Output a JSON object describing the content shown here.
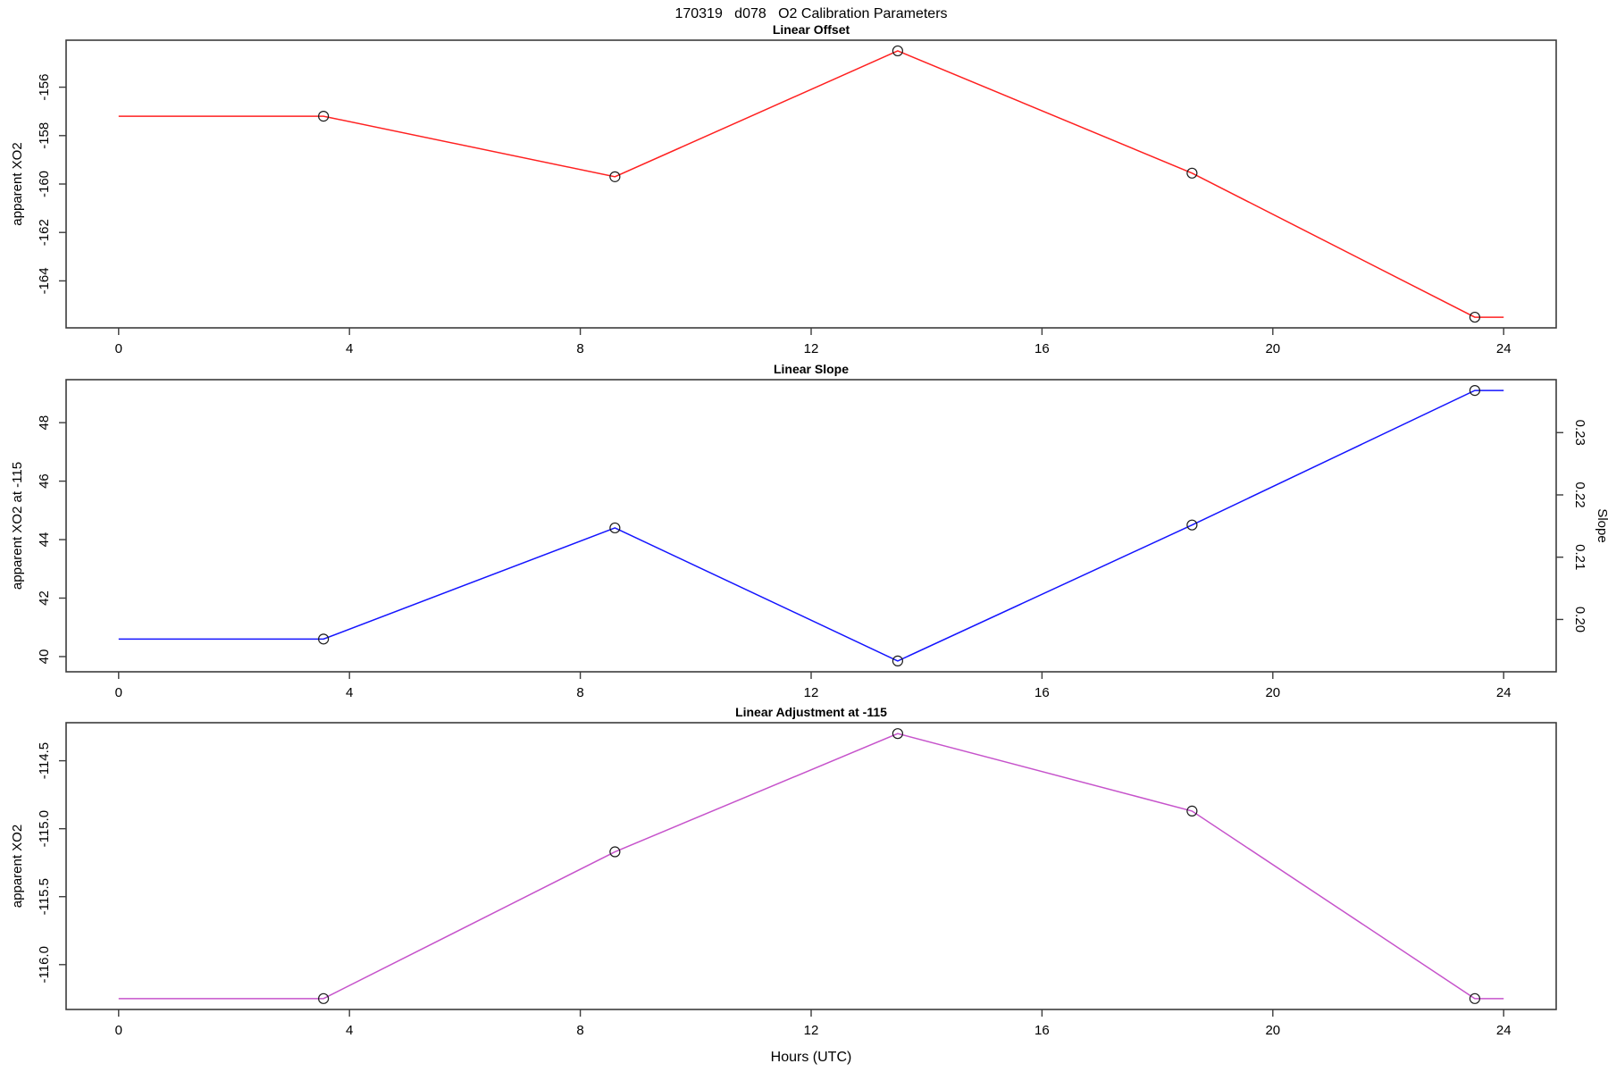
{
  "page_title": "170319   d078   O2 Calibration Parameters",
  "x_axis": {
    "label": "Hours (UTC)",
    "tick_values": [
      0,
      4,
      8,
      12,
      16,
      20,
      24
    ],
    "tick_labels": [
      "0",
      "4",
      "8",
      "12",
      "16",
      "20",
      "24"
    ],
    "lim": [
      -0.91,
      24.91
    ]
  },
  "chart_data": [
    {
      "type": "line",
      "title": "Linear Offset",
      "ylabel": "apparent XO2",
      "color": "#ff2020",
      "marker": "open-circle",
      "x": [
        3.55,
        8.6,
        13.5,
        18.6,
        23.5
      ],
      "values": [
        -157.2,
        -159.7,
        -154.5,
        -159.55,
        -165.5
      ],
      "line_extend_x": [
        0,
        24
      ],
      "ylim": [
        -165.94,
        -154.06
      ],
      "ytick_values": [
        -164,
        -162,
        -160,
        -158,
        -156
      ],
      "ytick_labels": [
        "-164",
        "-162",
        "-160",
        "-158",
        "-156"
      ]
    },
    {
      "type": "line",
      "title": "Linear Slope",
      "ylabel": "apparent XO2 at -115",
      "color": "#1414ff",
      "marker": "open-circle",
      "x": [
        3.55,
        8.6,
        13.5,
        18.6,
        23.5
      ],
      "values": [
        40.6,
        44.4,
        39.85,
        44.5,
        49.1
      ],
      "line_extend_x": [
        0,
        24
      ],
      "ylim": [
        39.48,
        49.47
      ],
      "ytick_values": [
        40,
        42,
        44,
        46,
        48
      ],
      "ytick_labels": [
        "40",
        "42",
        "44",
        "46",
        "48"
      ],
      "right_axis": {
        "label": "Slope",
        "lim": [
          0.1916,
          0.2385
        ],
        "tick_values": [
          0.2,
          0.21,
          0.22,
          0.23
        ],
        "tick_labels": [
          "0.20",
          "0.21",
          "0.22",
          "0.23"
        ],
        "series_values_on_this_scale": [
          0.197,
          0.215,
          0.193,
          0.215,
          0.237
        ]
      }
    },
    {
      "type": "line",
      "title": "Linear Adjustment at -115",
      "ylabel": "apparent XO2",
      "color": "#c653cb",
      "marker": "open-circle",
      "x": [
        3.55,
        8.6,
        13.5,
        18.6,
        23.5
      ],
      "values": [
        -116.25,
        -115.17,
        -114.3,
        -114.87,
        -116.25
      ],
      "line_extend_x": [
        0,
        24
      ],
      "ylim": [
        -116.33,
        -114.22
      ],
      "ytick_values": [
        -116.0,
        -115.5,
        -115.0,
        -114.5
      ],
      "ytick_labels": [
        "-116.0",
        "-115.5",
        "-115.0",
        "-114.5"
      ]
    }
  ]
}
